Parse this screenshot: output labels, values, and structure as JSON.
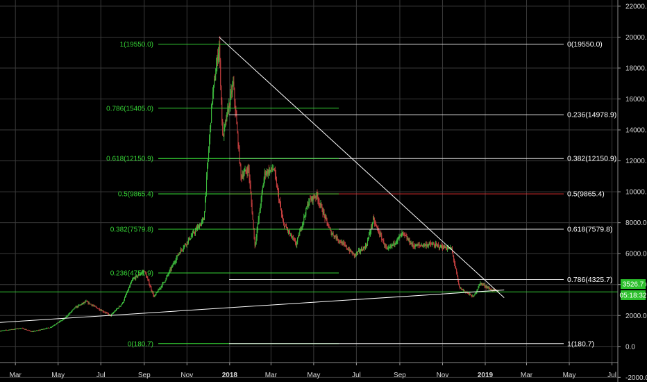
{
  "colors": {
    "background": "#000000",
    "grid": "#3a3a3a",
    "up": "#3fbf3f",
    "down": "#c84040",
    "fib_left": "#36d436",
    "fib_right_line": "#e6e6e6",
    "fib_highlight": "#e03030",
    "trendline": "#ffffff",
    "support": "#34c834",
    "price_badge": "#2bbf2b"
  },
  "price_label": {
    "last": "3526.7",
    "countdown": "05:18:32"
  },
  "chart_data": {
    "type": "candlestick",
    "title": "",
    "y_axis": {
      "ylim": [
        -2300,
        22400
      ],
      "ticks": [
        "22000.0",
        "20000.0",
        "18000.0",
        "16000.0",
        "14000.0",
        "12000.0",
        "10000.0",
        "8000.0",
        "6000.0",
        "4000.0",
        "2000.0",
        "0.0",
        "-2000.0"
      ]
    },
    "x_axis": {
      "range": [
        "2017-02-07",
        "2019-08-20"
      ],
      "ticks": [
        {
          "label": "Mar",
          "date": "2017-03-01"
        },
        {
          "label": "May",
          "date": "2017-05-01"
        },
        {
          "label": "Jul",
          "date": "2017-07-01"
        },
        {
          "label": "Sep",
          "date": "2017-09-01"
        },
        {
          "label": "Nov",
          "date": "2017-11-01"
        },
        {
          "label": "2018",
          "date": "2018-01-01",
          "bold": true
        },
        {
          "label": "Mar",
          "date": "2018-03-01"
        },
        {
          "label": "May",
          "date": "2018-05-01"
        },
        {
          "label": "Jul",
          "date": "2018-07-01"
        },
        {
          "label": "Sep",
          "date": "2018-09-01"
        },
        {
          "label": "Nov",
          "date": "2018-11-01"
        },
        {
          "label": "2019",
          "date": "2019-01-01",
          "bold": true
        },
        {
          "label": "Mar",
          "date": "2019-03-01"
        },
        {
          "label": "May",
          "date": "2019-05-01"
        },
        {
          "label": "Jul",
          "date": "2019-07-01"
        }
      ]
    },
    "price_path": [
      {
        "date": "2017-02-07",
        "price": 1000
      },
      {
        "date": "2017-03-10",
        "price": 1180
      },
      {
        "date": "2017-03-25",
        "price": 950
      },
      {
        "date": "2017-04-20",
        "price": 1230
      },
      {
        "date": "2017-05-10",
        "price": 1800
      },
      {
        "date": "2017-05-25",
        "price": 2500
      },
      {
        "date": "2017-06-10",
        "price": 2900
      },
      {
        "date": "2017-06-25",
        "price": 2500
      },
      {
        "date": "2017-07-15",
        "price": 2000
      },
      {
        "date": "2017-08-01",
        "price": 2800
      },
      {
        "date": "2017-08-15",
        "price": 4300
      },
      {
        "date": "2017-09-01",
        "price": 4900
      },
      {
        "date": "2017-09-15",
        "price": 3200
      },
      {
        "date": "2017-10-01",
        "price": 4300
      },
      {
        "date": "2017-10-20",
        "price": 6000
      },
      {
        "date": "2017-11-10",
        "price": 7300
      },
      {
        "date": "2017-11-25",
        "price": 8200
      },
      {
        "date": "2017-12-07",
        "price": 16000
      },
      {
        "date": "2017-12-17",
        "price": 19500
      },
      {
        "date": "2017-12-22",
        "price": 13500
      },
      {
        "date": "2018-01-06",
        "price": 17000
      },
      {
        "date": "2018-01-17",
        "price": 11000
      },
      {
        "date": "2018-01-28",
        "price": 11500
      },
      {
        "date": "2018-02-06",
        "price": 6500
      },
      {
        "date": "2018-02-20",
        "price": 11200
      },
      {
        "date": "2018-03-05",
        "price": 11500
      },
      {
        "date": "2018-03-18",
        "price": 8000
      },
      {
        "date": "2018-04-06",
        "price": 6600
      },
      {
        "date": "2018-04-24",
        "price": 9400
      },
      {
        "date": "2018-05-05",
        "price": 9800
      },
      {
        "date": "2018-05-25",
        "price": 7400
      },
      {
        "date": "2018-06-10",
        "price": 6700
      },
      {
        "date": "2018-06-28",
        "price": 5900
      },
      {
        "date": "2018-07-15",
        "price": 6500
      },
      {
        "date": "2018-07-25",
        "price": 8200
      },
      {
        "date": "2018-08-14",
        "price": 6200
      },
      {
        "date": "2018-09-05",
        "price": 7300
      },
      {
        "date": "2018-09-20",
        "price": 6500
      },
      {
        "date": "2018-10-15",
        "price": 6600
      },
      {
        "date": "2018-11-14",
        "price": 6300
      },
      {
        "date": "2018-11-25",
        "price": 3800
      },
      {
        "date": "2018-12-15",
        "price": 3200
      },
      {
        "date": "2018-12-25",
        "price": 4100
      },
      {
        "date": "2019-01-10",
        "price": 3650
      },
      {
        "date": "2019-01-20",
        "price": 3560
      }
    ],
    "fib_left": [
      {
        "label": "1(19550.0)",
        "value": 19550.0
      },
      {
        "label": "0.786(15405.0)",
        "value": 15405.0
      },
      {
        "label": "0.618(12150.9)",
        "value": 12150.9
      },
      {
        "label": "0.5(9865.4)",
        "value": 9865.4
      },
      {
        "label": "0.382(7579.8)",
        "value": 7579.8
      },
      {
        "label": "0.236(4751.9)",
        "value": 4751.9
      },
      {
        "label": "0(180.7)",
        "value": 180.7
      }
    ],
    "fib_right": [
      {
        "label": "0(19550.0)",
        "value": 19550.0
      },
      {
        "label": "0.236(14978.9)",
        "value": 14978.9
      },
      {
        "label": "0.382(12150.9)",
        "value": 12150.9
      },
      {
        "label": "0.5(9865.4)",
        "value": 9865.4,
        "highlight": true
      },
      {
        "label": "0.618(7579.8)",
        "value": 7579.8
      },
      {
        "label": "0.786(4325.7)",
        "value": 4325.7
      },
      {
        "label": "1(180.7)",
        "value": 180.7
      }
    ],
    "trendlines": [
      {
        "kind": "descending",
        "from": {
          "date": "2017-12-17",
          "price": 20000
        },
        "to": {
          "date": "2019-01-28",
          "price": 3150
        }
      },
      {
        "kind": "ascending",
        "from": {
          "date": "2017-02-07",
          "price": 1550
        },
        "to": {
          "date": "2019-01-28",
          "price": 3650
        }
      }
    ],
    "support_level": 3526.7,
    "last_price": 3526.7
  }
}
